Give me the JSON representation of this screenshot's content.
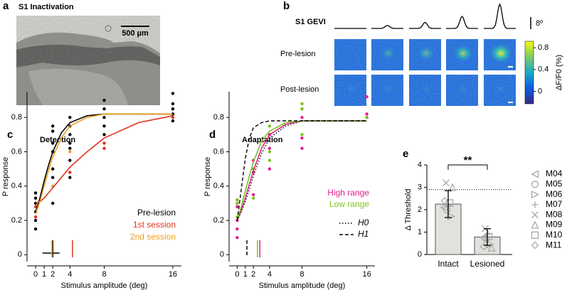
{
  "panels": {
    "a": {
      "label": "a",
      "title": "S1 Inactivation",
      "scale_bar": "500 µm"
    },
    "b": {
      "label": "b",
      "title": "S1 GEVI",
      "scale": "8º",
      "stimuli": [
        0,
        2,
        4,
        8,
        16
      ],
      "rows": [
        "Pre-lesion",
        "Post-lesion"
      ],
      "colorbar": {
        "label": "ΔF/F0 (%)",
        "lim": [
          -0.23,
          0.92
        ],
        "ticks": [
          0,
          0.4,
          0.8
        ]
      }
    }
  },
  "chart_data": [
    {
      "type": "scatter-fit",
      "label": "c",
      "title": "Detection",
      "x_label": "Stimulus amplitude (deg)",
      "y_label": "P response",
      "xlim": [
        -1,
        17
      ],
      "ylim": [
        -0.04,
        0.95
      ],
      "xticks": [
        0,
        1,
        2,
        4,
        8,
        16
      ],
      "yticks": [
        0,
        0.2,
        0.4,
        0.6,
        0.8
      ],
      "series": [
        {
          "name": "Pre-lesion",
          "color": "#000000",
          "dash": "solid",
          "fit_x": [
            0,
            0.5,
            1,
            1.5,
            2,
            3,
            4,
            6,
            8,
            12,
            16
          ],
          "fit": [
            0.25,
            0.33,
            0.43,
            0.52,
            0.6,
            0.71,
            0.77,
            0.81,
            0.82,
            0.82,
            0.82
          ],
          "points_x": [
            0,
            0,
            0,
            0,
            0,
            0,
            2,
            2,
            2,
            2,
            2,
            2,
            2,
            4,
            4,
            4,
            4,
            4,
            4,
            4,
            8,
            8,
            8,
            8,
            8,
            16,
            16,
            16,
            16,
            16
          ],
          "points": [
            0.15,
            0.2,
            0.25,
            0.3,
            0.33,
            0.36,
            0.3,
            0.45,
            0.5,
            0.6,
            0.65,
            0.72,
            0.75,
            0.45,
            0.55,
            0.62,
            0.65,
            0.7,
            0.75,
            0.8,
            0.7,
            0.75,
            0.8,
            0.85,
            0.9,
            0.78,
            0.82,
            0.85,
            0.88,
            0.94
          ],
          "threshold": 2,
          "threshold_range": [
            0.8,
            2.8
          ]
        },
        {
          "name": "1st session",
          "color": "#e0321e",
          "dash": "solid",
          "fit_x": [
            0,
            0.5,
            1,
            1.5,
            2,
            3,
            4,
            6,
            8,
            12,
            16
          ],
          "fit": [
            0.3,
            0.31,
            0.33,
            0.36,
            0.39,
            0.45,
            0.51,
            0.6,
            0.68,
            0.77,
            0.81
          ],
          "points_x": [
            0,
            0,
            4,
            8,
            8,
            16
          ],
          "points": [
            0.22,
            0.28,
            0.48,
            0.62,
            0.65,
            0.8
          ],
          "threshold": 4.3
        },
        {
          "name": "2nd session",
          "color": "#f0a01e",
          "dash": "solid",
          "fit_x": [
            0,
            0.5,
            1,
            1.5,
            2,
            3,
            4,
            6,
            8,
            12,
            16
          ],
          "fit": [
            0.24,
            0.31,
            0.4,
            0.49,
            0.57,
            0.68,
            0.75,
            0.8,
            0.82,
            0.82,
            0.82
          ],
          "points_x": [
            2,
            4
          ],
          "points": [
            0.4,
            0.6
          ],
          "threshold": 1.9
        }
      ]
    },
    {
      "type": "scatter-fit",
      "label": "d",
      "title": "Adaptation",
      "x_label": "Stimulus amplitude (deg)",
      "y_label": "P response",
      "xlim": [
        -1,
        17
      ],
      "ylim": [
        -0.04,
        0.95
      ],
      "xticks": [
        0,
        1,
        2,
        4,
        8,
        16
      ],
      "yticks": [
        0,
        0.2,
        0.4,
        0.6,
        0.8
      ],
      "series": [
        {
          "name": "High range",
          "color": "#e0208c",
          "dash": "solid",
          "fit_x": [
            0,
            0.5,
            1,
            1.5,
            2,
            3,
            4,
            6,
            8,
            12,
            16
          ],
          "fit": [
            0.2,
            0.26,
            0.33,
            0.41,
            0.49,
            0.62,
            0.7,
            0.76,
            0.78,
            0.78,
            0.78
          ],
          "points_x": [
            0,
            0,
            0,
            0,
            0,
            2,
            2,
            2,
            4,
            4,
            4,
            8,
            8,
            8,
            8,
            16,
            16,
            16
          ],
          "points": [
            0.1,
            0.15,
            0.28,
            0.3,
            0.2,
            0.35,
            0.48,
            0.55,
            0.5,
            0.62,
            0.7,
            0.62,
            0.68,
            0.8,
            0.85,
            0.8,
            0.82,
            0.92
          ],
          "threshold": 2.8
        },
        {
          "name": "Low range",
          "color": "#7cc21e",
          "dash": "solid",
          "fit_x": [
            0,
            0.5,
            1,
            1.5,
            2,
            3,
            4,
            6,
            8,
            12,
            16
          ],
          "fit": [
            0.2,
            0.28,
            0.37,
            0.46,
            0.54,
            0.66,
            0.72,
            0.77,
            0.78,
            0.78,
            0.78
          ],
          "points_x": [
            0,
            0,
            0,
            2,
            2,
            4,
            4,
            4,
            8,
            8,
            8,
            16
          ],
          "points": [
            0.22,
            0.32,
            0.3,
            0.33,
            0.5,
            0.55,
            0.6,
            0.75,
            0.7,
            0.85,
            0.88,
            0.8
          ],
          "threshold": 2.5
        },
        {
          "name": "H0",
          "color": "#000000",
          "dash": "dotted",
          "fit_x": [
            0,
            0.5,
            1,
            1.5,
            2,
            3,
            4,
            6,
            8,
            12,
            16
          ],
          "fit": [
            0.2,
            0.25,
            0.31,
            0.38,
            0.46,
            0.59,
            0.68,
            0.75,
            0.78,
            0.78,
            0.78
          ]
        },
        {
          "name": "H1",
          "color": "#000000",
          "dash": "dashed",
          "fit_x": [
            0,
            0.5,
            1,
            1.5,
            2,
            3,
            4,
            6,
            8,
            12,
            16
          ],
          "fit": [
            0.2,
            0.38,
            0.56,
            0.68,
            0.74,
            0.77,
            0.78,
            0.78,
            0.78,
            0.78,
            0.78
          ],
          "threshold": 1.2
        }
      ]
    },
    {
      "type": "bar",
      "label": "e",
      "y_label": "Δ Threshold",
      "categories": [
        "Intact",
        "Lesioned"
      ],
      "values": [
        2.25,
        0.78
      ],
      "errors": [
        0.6,
        0.37
      ],
      "color": "#e2e2dc",
      "ylim": [
        0,
        4
      ],
      "yticks": [
        0,
        1,
        2,
        3,
        4
      ],
      "reference_line": 2.9,
      "significance": "**",
      "series": [
        {
          "name": "M04",
          "marker": "triangle-left",
          "color": "#a8a8a8",
          "values": [
            2.1,
            0.75
          ]
        },
        {
          "name": "M05",
          "marker": "circle",
          "color": "#a8a8a8",
          "values": [
            2.0,
            0.7
          ]
        },
        {
          "name": "M06",
          "marker": "triangle-right",
          "color": "#a8a8a8",
          "values": [
            1.7,
            0.45
          ]
        },
        {
          "name": "M07",
          "marker": "plus",
          "color": "#a8a8a8",
          "values": [
            2.2,
            0.9
          ]
        },
        {
          "name": "M08",
          "marker": "cross",
          "color": "#a8a8a8",
          "values": [
            3.2,
            1.15
          ]
        },
        {
          "name": "M09",
          "marker": "triangle-up",
          "color": "#a8a8a8",
          "values": [
            3.0,
            0.3
          ]
        },
        {
          "name": "M10",
          "marker": "square",
          "color": "#a8a8a8",
          "values": [
            2.3,
            0.8
          ]
        },
        {
          "name": "M11",
          "marker": "diamond",
          "color": "#a8a8a8",
          "values": [
            2.4,
            0.35
          ]
        }
      ]
    }
  ]
}
